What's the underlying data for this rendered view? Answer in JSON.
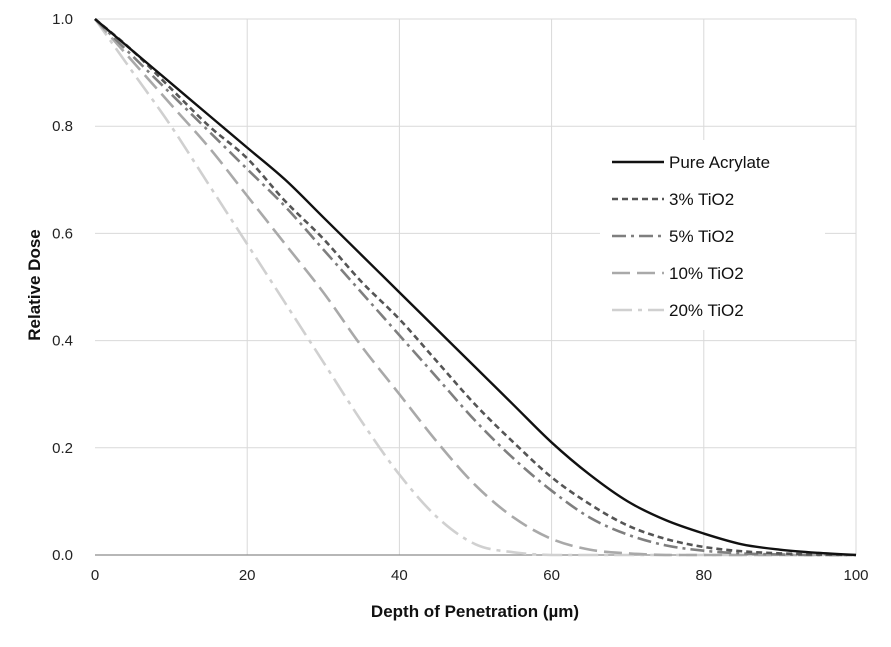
{
  "chart_data": {
    "type": "line",
    "title": "",
    "xlabel": "Depth of Penetration (µm)",
    "ylabel": "Relative Dose",
    "xlim": [
      0,
      100
    ],
    "ylim": [
      0,
      1
    ],
    "x_ticks": [
      0,
      20,
      40,
      60,
      80,
      100
    ],
    "y_ticks": [
      0.0,
      0.2,
      0.4,
      0.6,
      0.8,
      1.0
    ],
    "x_tick_labels": [
      "0",
      "20",
      "40",
      "60",
      "80",
      "100"
    ],
    "y_tick_labels": [
      "0.0",
      "0.2",
      "0.4",
      "0.6",
      "0.8",
      "1.0"
    ],
    "grid": "both",
    "legend_position": "right",
    "x": [
      0,
      5,
      10,
      15,
      20,
      25,
      30,
      35,
      40,
      45,
      50,
      55,
      60,
      65,
      70,
      75,
      80,
      85,
      90,
      95,
      100
    ],
    "series": [
      {
        "name": "Pure Acrylate",
        "color": "#111111",
        "dash": "solid",
        "values": [
          1.0,
          0.94,
          0.88,
          0.82,
          0.76,
          0.7,
          0.63,
          0.56,
          0.49,
          0.42,
          0.35,
          0.28,
          0.21,
          0.15,
          0.1,
          0.065,
          0.04,
          0.02,
          0.01,
          0.004,
          0.0
        ]
      },
      {
        "name": "3% TiO2",
        "color": "#555555",
        "dash": "short-dash",
        "values": [
          1.0,
          0.94,
          0.87,
          0.8,
          0.74,
          0.66,
          0.59,
          0.51,
          0.44,
          0.36,
          0.28,
          0.21,
          0.145,
          0.095,
          0.055,
          0.03,
          0.015,
          0.007,
          0.003,
          0.001,
          0.0
        ]
      },
      {
        "name": "5% TiO2",
        "color": "#7f7f7f",
        "dash": "dash-dot",
        "values": [
          1.0,
          0.93,
          0.86,
          0.79,
          0.72,
          0.65,
          0.57,
          0.49,
          0.41,
          0.33,
          0.25,
          0.18,
          0.12,
          0.07,
          0.038,
          0.018,
          0.008,
          0.003,
          0.001,
          0.0,
          0.0
        ]
      },
      {
        "name": "10% TiO2",
        "color": "#a9a9a9",
        "dash": "long-dash",
        "values": [
          1.0,
          0.92,
          0.84,
          0.76,
          0.67,
          0.58,
          0.49,
          0.39,
          0.3,
          0.21,
          0.13,
          0.07,
          0.03,
          0.01,
          0.003,
          0.0,
          0.0,
          0.0,
          0.0,
          0.0,
          0.0
        ]
      },
      {
        "name": "20% TiO2",
        "color": "#d0d0d0",
        "dash": "long-dash-dot",
        "values": [
          1.0,
          0.9,
          0.8,
          0.69,
          0.58,
          0.47,
          0.36,
          0.25,
          0.15,
          0.07,
          0.02,
          0.005,
          0.0,
          0.0,
          0.0,
          0.0,
          0.0,
          0.0,
          0.0,
          0.0,
          0.0
        ]
      }
    ]
  }
}
